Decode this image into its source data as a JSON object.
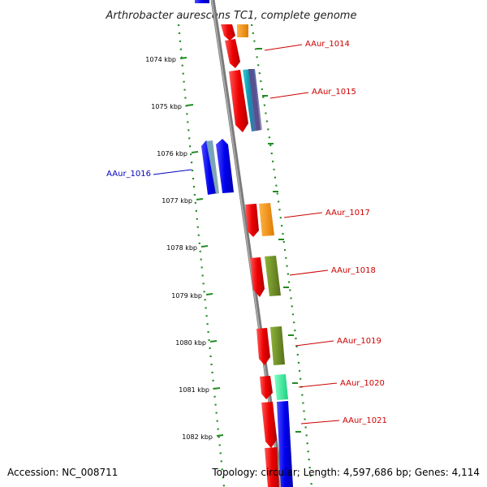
{
  "title": "Arthrobacter aurescens TC1, complete genome",
  "footer": {
    "accession": "Accession: NC_008711",
    "topology": "Topology: circular; Length: 4,597,686 bp; Genes: 4,114"
  },
  "ticks": [
    {
      "label": "1074 kbp"
    },
    {
      "label": "1075 kbp"
    },
    {
      "label": "1076 kbp"
    },
    {
      "label": "1077 kbp"
    },
    {
      "label": "1078 kbp"
    },
    {
      "label": "1079 kbp"
    },
    {
      "label": "1080 kbp"
    },
    {
      "label": "1081 kbp"
    },
    {
      "label": "1082 kbp"
    }
  ],
  "genes": [
    {
      "label": "AAur_1014",
      "strand": "forward",
      "color": "#cc0000"
    },
    {
      "label": "AAur_1015",
      "strand": "forward",
      "color": "#cc0000"
    },
    {
      "label": "AAur_1016",
      "strand": "reverse",
      "color": "#0000bb"
    },
    {
      "label": "AAur_1017",
      "strand": "forward",
      "color": "#cc0000"
    },
    {
      "label": "AAur_1018",
      "strand": "forward",
      "color": "#cc0000"
    },
    {
      "label": "AAur_1019",
      "strand": "forward",
      "color": "#cc0000"
    },
    {
      "label": "AAur_1020",
      "strand": "forward",
      "color": "#cc0000"
    },
    {
      "label": "AAur_1021",
      "strand": "forward",
      "color": "#cc0000"
    }
  ],
  "colors": {
    "backbone": "#8a8a8a",
    "ruler": "#228b22",
    "forward_gene": "#ee0000",
    "reverse_gene": "#0000ee",
    "orange_feature": "#ff8c00",
    "olive_feature": "#6b8e23",
    "mint_feature": "#3cf0a0"
  }
}
